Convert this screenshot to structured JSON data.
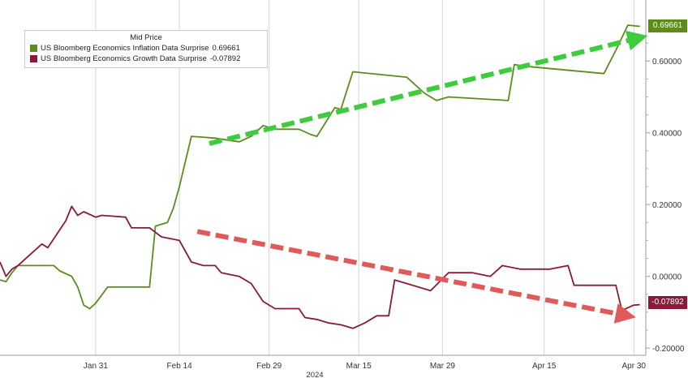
{
  "colors": {
    "inflation": "#5c8d1a",
    "growth": "#8b1a3a",
    "up_arrow": "#3dcc3d",
    "down_arrow": "#e05a5a",
    "grid": "#d4d4d4"
  },
  "legend": {
    "title": "Mid Price",
    "items": [
      {
        "label": "US Bloomberg Economics Inflation Data Surprise",
        "value": "0.69661"
      },
      {
        "label": "US Bloomberg Economics Growth Data Surprise",
        "value": "-0.07892"
      }
    ]
  },
  "badges": {
    "inflation": "0.69661",
    "growth": "-0.07892"
  },
  "chart_data": {
    "type": "line",
    "title": "",
    "xlabel": "2024",
    "ylabel": "",
    "x_range": [
      "2024-01-15",
      "2024-05-02"
    ],
    "ylim": [
      -0.22,
      0.77
    ],
    "grid": "vertical",
    "legend_position": "top-left",
    "x_tick_labels": [
      {
        "date": "2024-01-31",
        "label": "Jan 31"
      },
      {
        "date": "2024-02-14",
        "label": "Feb 14"
      },
      {
        "date": "2024-02-29",
        "label": "Feb 29"
      },
      {
        "date": "2024-03-15",
        "label": "Mar 15"
      },
      {
        "date": "2024-03-29",
        "label": "Mar 29"
      },
      {
        "date": "2024-04-15",
        "label": "Apr 15"
      },
      {
        "date": "2024-04-30",
        "label": "Apr 30"
      }
    ],
    "y_ticks": [
      {
        "value": 0.6,
        "label": "0.60000"
      },
      {
        "value": 0.4,
        "label": "0.40000"
      },
      {
        "value": 0.2,
        "label": "0.20000"
      },
      {
        "value": 0.0,
        "label": "0.00000"
      },
      {
        "value": -0.2,
        "label": "-0.20000"
      }
    ],
    "series": [
      {
        "name": "US Bloomberg Economics Inflation Data Surprise",
        "last_value": 0.69661,
        "points": [
          [
            "2024-01-15",
            -0.01
          ],
          [
            "2024-01-16",
            -0.015
          ],
          [
            "2024-01-17",
            0.01
          ],
          [
            "2024-01-18",
            0.03
          ],
          [
            "2024-01-24",
            0.03
          ],
          [
            "2024-01-25",
            0.015
          ],
          [
            "2024-01-27",
            0.0
          ],
          [
            "2024-01-28",
            -0.03
          ],
          [
            "2024-01-29",
            -0.08
          ],
          [
            "2024-01-30",
            -0.09
          ],
          [
            "2024-01-31",
            -0.075
          ],
          [
            "2024-02-02",
            -0.03
          ],
          [
            "2024-02-09",
            -0.03
          ],
          [
            "2024-02-10",
            0.14
          ],
          [
            "2024-02-12",
            0.15
          ],
          [
            "2024-02-13",
            0.19
          ],
          [
            "2024-02-14",
            0.25
          ],
          [
            "2024-02-16",
            0.39
          ],
          [
            "2024-02-20",
            0.385
          ],
          [
            "2024-02-24",
            0.375
          ],
          [
            "2024-02-26",
            0.39
          ],
          [
            "2024-02-28",
            0.42
          ],
          [
            "2024-03-01",
            0.41
          ],
          [
            "2024-03-05",
            0.41
          ],
          [
            "2024-03-07",
            0.395
          ],
          [
            "2024-03-08",
            0.39
          ],
          [
            "2024-03-11",
            0.47
          ],
          [
            "2024-03-12",
            0.465
          ],
          [
            "2024-03-14",
            0.57
          ],
          [
            "2024-03-23",
            0.555
          ],
          [
            "2024-03-26",
            0.51
          ],
          [
            "2024-03-28",
            0.49
          ],
          [
            "2024-03-30",
            0.5
          ],
          [
            "2024-04-09",
            0.49
          ],
          [
            "2024-04-10",
            0.59
          ],
          [
            "2024-04-12",
            0.585
          ],
          [
            "2024-04-25",
            0.565
          ],
          [
            "2024-04-27",
            0.63
          ],
          [
            "2024-04-29",
            0.7
          ],
          [
            "2024-05-01",
            0.69661
          ]
        ]
      },
      {
        "name": "US Bloomberg Economics Growth Data Surprise",
        "last_value": -0.07892,
        "points": [
          [
            "2024-01-15",
            0.04
          ],
          [
            "2024-01-16",
            0.0
          ],
          [
            "2024-01-17",
            0.02
          ],
          [
            "2024-01-18",
            0.03
          ],
          [
            "2024-01-20",
            0.06
          ],
          [
            "2024-01-22",
            0.09
          ],
          [
            "2024-01-23",
            0.08
          ],
          [
            "2024-01-25",
            0.13
          ],
          [
            "2024-01-26",
            0.155
          ],
          [
            "2024-01-27",
            0.195
          ],
          [
            "2024-01-28",
            0.17
          ],
          [
            "2024-01-29",
            0.18
          ],
          [
            "2024-01-31",
            0.165
          ],
          [
            "2024-02-01",
            0.17
          ],
          [
            "2024-02-05",
            0.165
          ],
          [
            "2024-02-06",
            0.135
          ],
          [
            "2024-02-09",
            0.135
          ],
          [
            "2024-02-11",
            0.11
          ],
          [
            "2024-02-14",
            0.1
          ],
          [
            "2024-02-16",
            0.04
          ],
          [
            "2024-02-18",
            0.03
          ],
          [
            "2024-02-20",
            0.03
          ],
          [
            "2024-02-21",
            0.01
          ],
          [
            "2024-02-24",
            0.0
          ],
          [
            "2024-02-26",
            -0.02
          ],
          [
            "2024-02-28",
            -0.07
          ],
          [
            "2024-03-01",
            -0.09
          ],
          [
            "2024-03-05",
            -0.09
          ],
          [
            "2024-03-06",
            -0.115
          ],
          [
            "2024-03-08",
            -0.12
          ],
          [
            "2024-03-10",
            -0.13
          ],
          [
            "2024-03-12",
            -0.135
          ],
          [
            "2024-03-14",
            -0.145
          ],
          [
            "2024-03-16",
            -0.13
          ],
          [
            "2024-03-18",
            -0.11
          ],
          [
            "2024-03-20",
            -0.11
          ],
          [
            "2024-03-21",
            -0.01
          ],
          [
            "2024-03-25",
            -0.03
          ],
          [
            "2024-03-27",
            -0.04
          ],
          [
            "2024-03-30",
            0.01
          ],
          [
            "2024-04-03",
            0.01
          ],
          [
            "2024-04-06",
            0.0
          ],
          [
            "2024-04-08",
            0.03
          ],
          [
            "2024-04-11",
            0.02
          ],
          [
            "2024-04-16",
            0.02
          ],
          [
            "2024-04-19",
            0.03
          ],
          [
            "2024-04-20",
            -0.025
          ],
          [
            "2024-04-22",
            -0.025
          ],
          [
            "2024-04-25",
            -0.025
          ],
          [
            "2024-04-27",
            -0.025
          ],
          [
            "2024-04-28",
            -0.095
          ],
          [
            "2024-04-30",
            -0.08
          ],
          [
            "2024-05-01",
            -0.07892
          ]
        ]
      }
    ],
    "annotations": [
      {
        "type": "arrow",
        "color": "up_arrow",
        "from": [
          "2024-02-19",
          0.37
        ],
        "to": [
          "2024-05-01",
          0.665
        ]
      },
      {
        "type": "arrow",
        "color": "down_arrow",
        "from": [
          "2024-02-17",
          0.125
        ],
        "to": [
          "2024-04-29",
          -0.11
        ]
      }
    ]
  }
}
